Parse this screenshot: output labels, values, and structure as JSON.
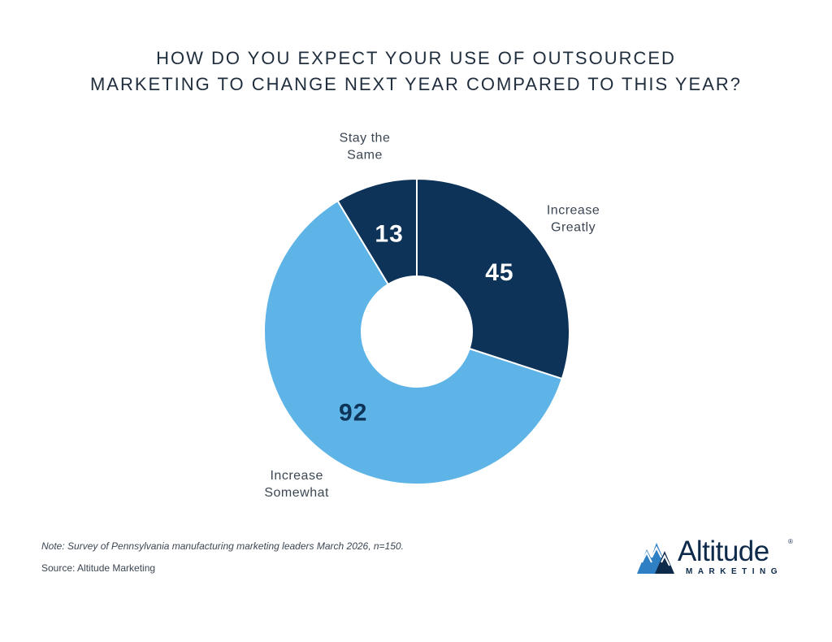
{
  "title_lines": [
    "HOW DO YOU EXPECT YOUR USE OF OUTSOURCED",
    "MARKETING TO CHANGE NEXT YEAR COMPARED TO THIS YEAR?"
  ],
  "chart_data": {
    "type": "pie",
    "title": "HOW DO YOU EXPECT YOUR USE OF OUTSOURCED MARKETING TO CHANGE NEXT YEAR COMPARED TO THIS YEAR?",
    "donut": true,
    "slices": [
      {
        "label_lines": [
          "Increase",
          "Greatly"
        ],
        "value": 45,
        "color": "#0e3358",
        "value_color": "#ffffff"
      },
      {
        "label_lines": [
          "Increase",
          "Somewhat"
        ],
        "value": 92,
        "color": "#5eb4e6",
        "value_color": "#0e3358"
      },
      {
        "label_lines": [
          "Stay the",
          "Same"
        ],
        "value": 13,
        "color": "#0e3358",
        "value_color": "#ffffff"
      }
    ],
    "legend": "none"
  },
  "footer": {
    "note": "Note: Survey of Pennsylvania manufacturing marketing leaders March 2026, n=150.",
    "source": "Source: Altitude Marketing"
  },
  "logo": {
    "name": "Altitude",
    "reg": "®",
    "sub": "MARKETING",
    "icon": "mountain-logo-icon",
    "colors": {
      "dark": "#0d2a4a",
      "light": "#2f7fc4"
    }
  },
  "colors": {
    "dark_navy": "#0e3358",
    "light_blue": "#5eb4e6",
    "text": "#1f2d3d"
  }
}
